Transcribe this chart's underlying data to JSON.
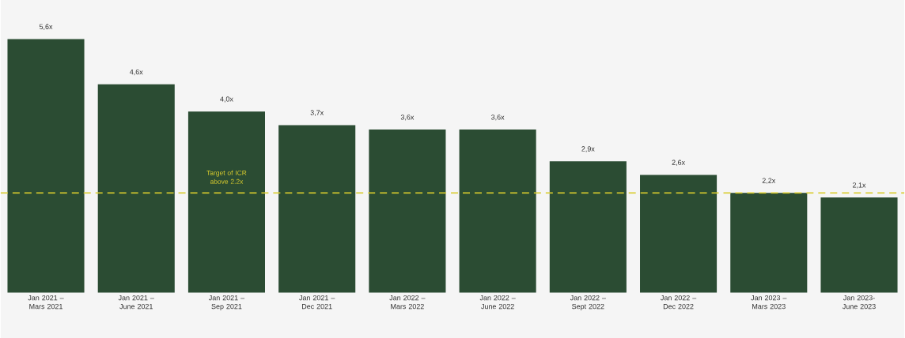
{
  "chart_data": {
    "type": "bar",
    "categories": [
      "Jan 2021 – Mars 2021",
      "Jan 2021 – June 2021",
      "Jan 2021 – Sep 2021",
      "Jan 2021 – Dec 2021",
      "Jan 2022 – Mars 2022",
      "Jan 2022 – June 2022",
      "Jan 2022 – Sept 2022",
      "Jan 2022 – Dec 2022",
      "Jan 2023 – Mars 2023",
      "Jan 2023- June 2023"
    ],
    "values": [
      5.6,
      4.6,
      4.0,
      3.7,
      3.6,
      3.6,
      2.9,
      2.6,
      2.2,
      2.1
    ],
    "value_labels": [
      "5,6x",
      "4,6x",
      "4,0x",
      "3,7x",
      "3,6x",
      "3,6x",
      "2,9x",
      "2,6x",
      "2,2x",
      "2,1x"
    ],
    "color": "#2b4c33",
    "ref_lines": [
      {
        "axis": "y",
        "value": 2.2,
        "label": "Target of ICR above 2.2x",
        "color": "#d9cc2e",
        "line_style": "dashed"
      }
    ]
  }
}
